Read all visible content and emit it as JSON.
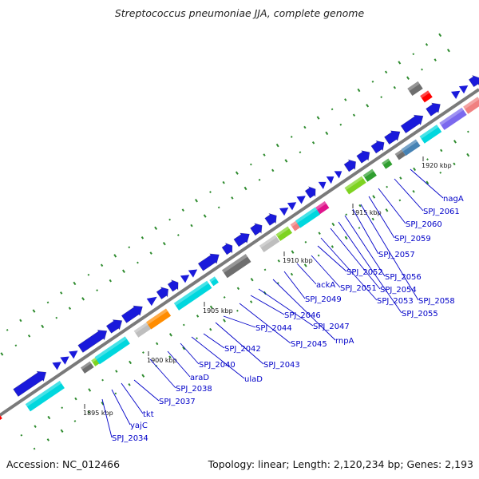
{
  "header": {
    "title": "Streptococcus pneumoniae JJA, complete genome"
  },
  "footer": {
    "accession": "Accession: NC_012466",
    "topology": "Topology: linear; Length: 2,120,234 bp; Genes: 2,193"
  },
  "ruler": [
    "1895 kbp",
    "1900 kbp",
    "1905 kbp",
    "1910 kbp",
    "1915 kbp",
    "1920 kbp"
  ],
  "gene_labels": [
    "SPJ_2034",
    "yajC",
    "tkt",
    "SPJ_2037",
    "SPJ_2038",
    "araD",
    "SPJ_2040",
    "ulaD",
    "SPJ_2042",
    "SPJ_2043",
    "SPJ_2044",
    "SPJ_2045",
    "SPJ_2046",
    "SPJ_2047",
    "rnpA",
    "SPJ_2049",
    "ackA",
    "SPJ_2051",
    "SPJ_2052",
    "SPJ_2053",
    "SPJ_2054",
    "SPJ_2055",
    "SPJ_2056",
    "SPJ_2057",
    "SPJ_2058",
    "SPJ_2059",
    "SPJ_2060",
    "SPJ_2061",
    "nagA"
  ],
  "colors": {
    "backbone": "#7a7a7a",
    "forward_gene": "#1a1adb",
    "label": "#0000c8",
    "gc_tick": "#2e8b2e",
    "cyan": "#00d7de",
    "orange": "#ff8c00",
    "silver": "#bebebe",
    "dark_gray": "#6e6e6e",
    "lime": "#7ed321",
    "green": "#2f9e2f",
    "magenta": "#e0148c",
    "salmon": "#f08080",
    "steelblue": "#4682b4",
    "purple": "#7b68ee",
    "khaki": "#c8bf7a",
    "red": "#ff0000"
  }
}
